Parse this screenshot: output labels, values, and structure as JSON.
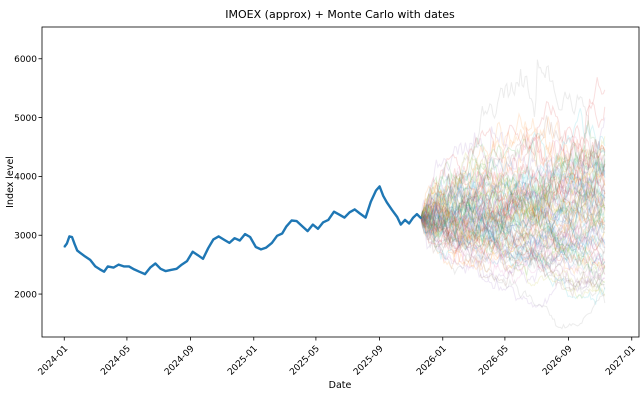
{
  "chart_data": {
    "type": "line",
    "title": "IMOEX (approx) + Monte Carlo with dates",
    "xlabel": "Date",
    "ylabel": "Index level",
    "x_axis_type": "date",
    "xlim": [
      "2023-11-19",
      "2027-01-15"
    ],
    "ylim": [
      1270,
      6540
    ],
    "grid": false,
    "legend": "none",
    "x_ticks": [
      "2024-01",
      "2024-05",
      "2024-09",
      "2025-01",
      "2025-05",
      "2025-09",
      "2026-01",
      "2026-05",
      "2026-09",
      "2027-01"
    ],
    "y_ticks": [
      2000,
      3000,
      4000,
      5000,
      6000
    ],
    "series": [
      {
        "role": "history",
        "color": "#1f77b4",
        "points": [
          [
            "2024-01-01",
            2800
          ],
          [
            "2024-01-06",
            2860
          ],
          [
            "2024-01-11",
            2980
          ],
          [
            "2024-01-16",
            2970
          ],
          [
            "2024-01-21",
            2850
          ],
          [
            "2024-01-26",
            2740
          ],
          [
            "2024-02-01",
            2700
          ],
          [
            "2024-02-10",
            2640
          ],
          [
            "2024-02-20",
            2580
          ],
          [
            "2024-03-01",
            2470
          ],
          [
            "2024-03-10",
            2420
          ],
          [
            "2024-03-18",
            2380
          ],
          [
            "2024-03-25",
            2470
          ],
          [
            "2024-04-05",
            2450
          ],
          [
            "2024-04-15",
            2500
          ],
          [
            "2024-04-25",
            2470
          ],
          [
            "2024-05-05",
            2470
          ],
          [
            "2024-05-15",
            2420
          ],
          [
            "2024-05-25",
            2380
          ],
          [
            "2024-06-05",
            2340
          ],
          [
            "2024-06-15",
            2450
          ],
          [
            "2024-06-25",
            2520
          ],
          [
            "2024-07-05",
            2430
          ],
          [
            "2024-07-15",
            2390
          ],
          [
            "2024-07-25",
            2410
          ],
          [
            "2024-08-05",
            2430
          ],
          [
            "2024-08-15",
            2500
          ],
          [
            "2024-08-25",
            2560
          ],
          [
            "2024-09-05",
            2720
          ],
          [
            "2024-09-15",
            2660
          ],
          [
            "2024-09-25",
            2600
          ],
          [
            "2024-10-05",
            2780
          ],
          [
            "2024-10-15",
            2930
          ],
          [
            "2024-10-25",
            2980
          ],
          [
            "2024-11-05",
            2920
          ],
          [
            "2024-11-15",
            2870
          ],
          [
            "2024-11-25",
            2950
          ],
          [
            "2024-12-05",
            2910
          ],
          [
            "2024-12-15",
            3020
          ],
          [
            "2024-12-25",
            2970
          ],
          [
            "2025-01-05",
            2800
          ],
          [
            "2025-01-15",
            2760
          ],
          [
            "2025-01-25",
            2790
          ],
          [
            "2025-02-05",
            2870
          ],
          [
            "2025-02-15",
            2990
          ],
          [
            "2025-02-25",
            3030
          ],
          [
            "2025-03-05",
            3150
          ],
          [
            "2025-03-15",
            3250
          ],
          [
            "2025-03-25",
            3240
          ],
          [
            "2025-04-05",
            3150
          ],
          [
            "2025-04-15",
            3070
          ],
          [
            "2025-04-25",
            3180
          ],
          [
            "2025-05-05",
            3110
          ],
          [
            "2025-05-15",
            3220
          ],
          [
            "2025-05-25",
            3260
          ],
          [
            "2025-06-05",
            3400
          ],
          [
            "2025-06-15",
            3350
          ],
          [
            "2025-06-25",
            3300
          ],
          [
            "2025-07-05",
            3390
          ],
          [
            "2025-07-15",
            3440
          ],
          [
            "2025-07-25",
            3370
          ],
          [
            "2025-08-05",
            3300
          ],
          [
            "2025-08-15",
            3570
          ],
          [
            "2025-08-25",
            3760
          ],
          [
            "2025-09-01",
            3830
          ],
          [
            "2025-09-08",
            3670
          ],
          [
            "2025-09-15",
            3560
          ],
          [
            "2025-09-25",
            3430
          ],
          [
            "2025-10-05",
            3310
          ],
          [
            "2025-10-12",
            3180
          ],
          [
            "2025-10-20",
            3260
          ],
          [
            "2025-10-28",
            3200
          ],
          [
            "2025-11-05",
            3300
          ],
          [
            "2025-11-12",
            3360
          ],
          [
            "2025-11-20",
            3290
          ]
        ]
      }
    ],
    "simulations": {
      "count": 100,
      "start": [
        "2025-11-20",
        3290
      ],
      "end_date": "2026-11-10",
      "final_range": [
        1560,
        6250
      ],
      "median_final": 3450,
      "alpha": 0.15,
      "palette": [
        "#1f77b4",
        "#ff7f0e",
        "#2ca02c",
        "#d62728",
        "#9467bd",
        "#8c564b",
        "#e377c2",
        "#7f7f7f",
        "#bcbd22",
        "#17becf"
      ]
    }
  }
}
